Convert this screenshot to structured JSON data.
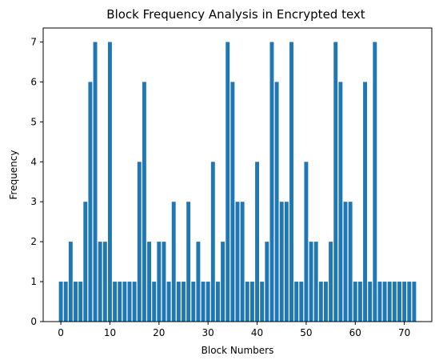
{
  "chart_data": {
    "type": "bar",
    "title": "Block Frequency Analysis in Encrypted text",
    "xlabel": "Block Numbers",
    "ylabel": "Frequency",
    "x": [
      0,
      1,
      2,
      3,
      4,
      5,
      6,
      7,
      8,
      9,
      10,
      11,
      12,
      13,
      14,
      15,
      16,
      17,
      18,
      19,
      20,
      21,
      22,
      23,
      24,
      25,
      26,
      27,
      28,
      29,
      30,
      31,
      32,
      33,
      34,
      35,
      36,
      37,
      38,
      39,
      40,
      41,
      42,
      43,
      44,
      45,
      46,
      47,
      48,
      49,
      50,
      51,
      52,
      53,
      54,
      55,
      56,
      57,
      58,
      59,
      60,
      61,
      62,
      63,
      64,
      65,
      66,
      67,
      68,
      69,
      70,
      71,
      72
    ],
    "values": [
      1,
      1,
      2,
      1,
      1,
      3,
      6,
      7,
      2,
      2,
      7,
      1,
      1,
      1,
      1,
      1,
      4,
      6,
      2,
      1,
      2,
      2,
      1,
      3,
      1,
      1,
      3,
      1,
      2,
      1,
      1,
      4,
      1,
      2,
      7,
      6,
      3,
      3,
      1,
      1,
      4,
      1,
      2,
      7,
      6,
      3,
      3,
      7,
      1,
      1,
      4,
      2,
      2,
      1,
      1,
      2,
      7,
      6,
      3,
      3,
      1,
      1,
      6,
      1,
      7,
      1,
      1,
      1,
      1,
      1,
      1,
      1,
      1
    ],
    "xlim": [
      -3.6,
      75.6
    ],
    "ylim": [
      0,
      7.35
    ],
    "xticks": [
      0,
      10,
      20,
      30,
      40,
      50,
      60,
      70
    ],
    "yticks": [
      0,
      1,
      2,
      3,
      4,
      5,
      6,
      7
    ],
    "bar_color": "#1f77b4",
    "grid": false,
    "legend": "none"
  }
}
